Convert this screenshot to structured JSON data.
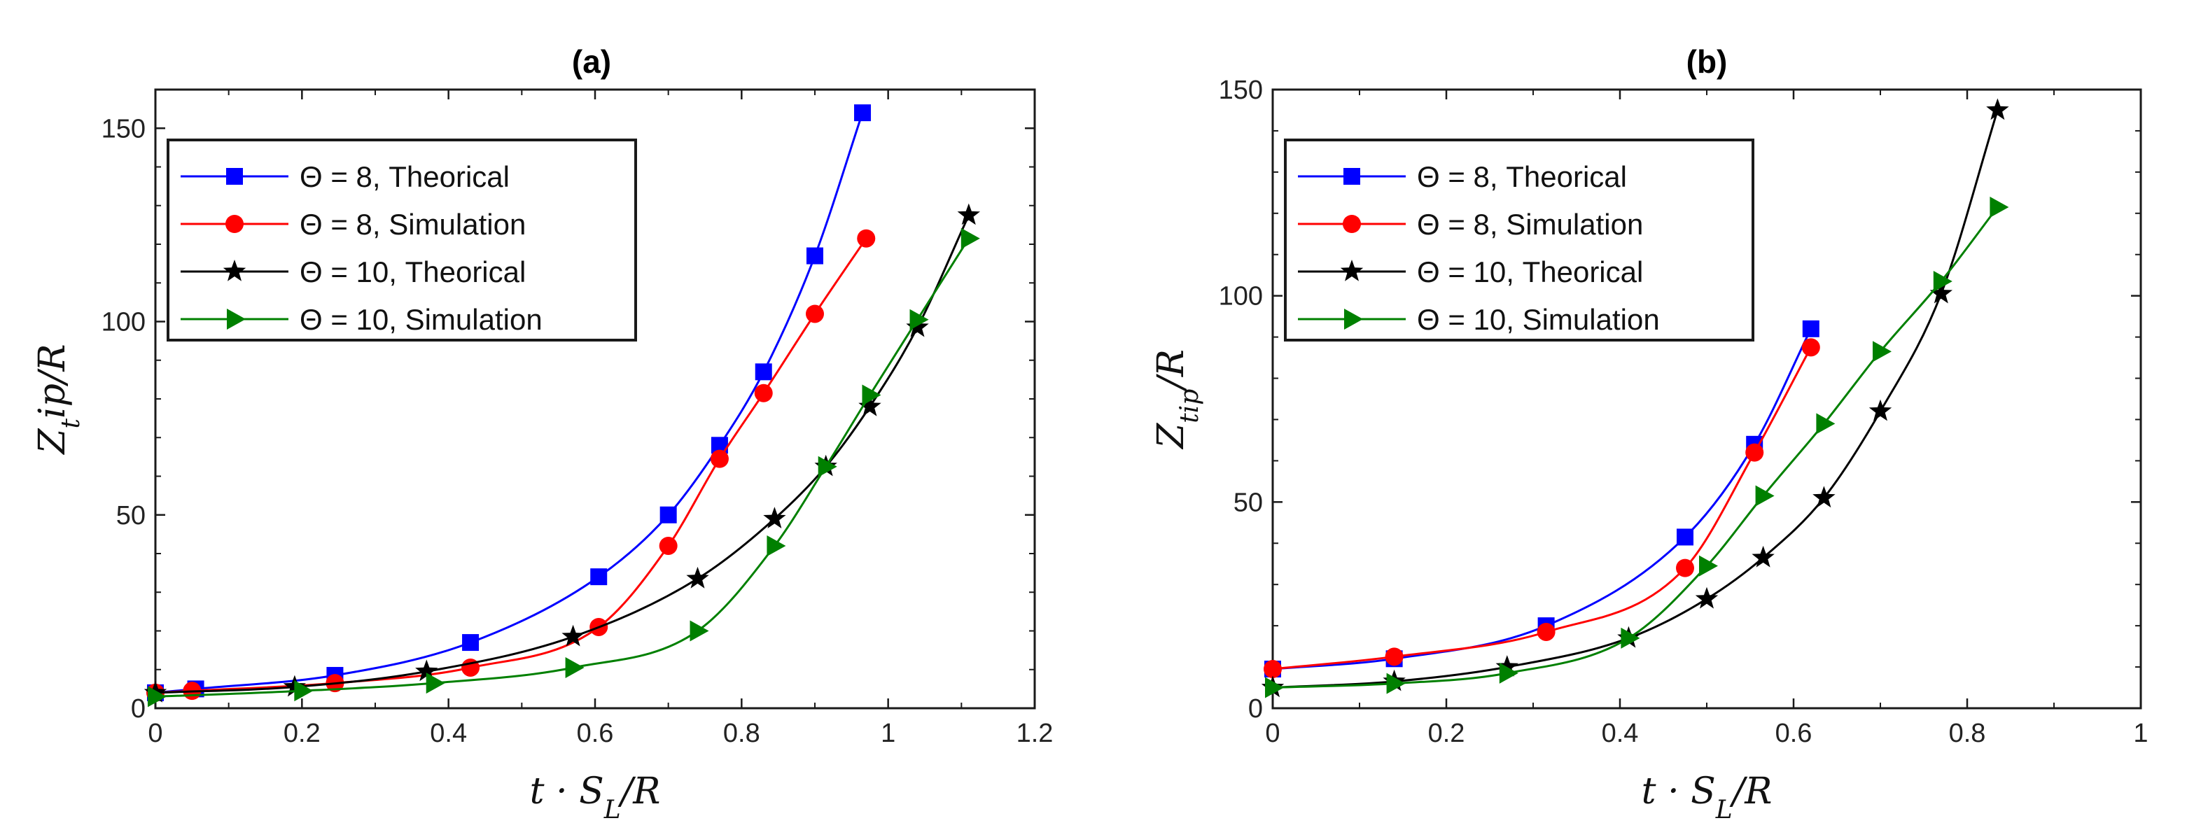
{
  "chart_data": [
    {
      "id": "a",
      "type": "line",
      "title": "(a)",
      "xlabel": "t · S_L/R",
      "ylabel": "Z_t ip/R",
      "xlim": [
        0,
        1.2
      ],
      "ylim": [
        0,
        160
      ],
      "xticks": [
        0,
        0.2,
        0.4,
        0.6,
        0.8,
        1,
        1.2
      ],
      "xtick_labels": [
        "0",
        "0.2",
        "0.4",
        "0.6",
        "0.8",
        "1",
        "1.2"
      ],
      "yticks": [
        0,
        50,
        100,
        150
      ],
      "ytick_labels": [
        "0",
        "50",
        "100",
        "150"
      ],
      "legend_position": "top-left",
      "series": [
        {
          "name": "Θ = 8, Theorical",
          "color": "#0000ff",
          "marker": "square",
          "x": [
            0,
            0.055,
            0.245,
            0.43,
            0.605,
            0.7,
            0.77,
            0.83,
            0.9,
            0.965
          ],
          "y": [
            4,
            5,
            8.5,
            17,
            34,
            50,
            68,
            87,
            117,
            154
          ]
        },
        {
          "name": "Θ = 8, Simulation",
          "color": "#ff0000",
          "marker": "circle",
          "x": [
            0,
            0.05,
            0.245,
            0.43,
            0.605,
            0.7,
            0.77,
            0.83,
            0.9,
            0.97
          ],
          "y": [
            4,
            4.5,
            6.5,
            10.5,
            21,
            42,
            64.5,
            81.5,
            102,
            121.5
          ]
        },
        {
          "name": "Θ = 10, Theorical",
          "color": "#000000",
          "marker": "star",
          "x": [
            0,
            0.19,
            0.37,
            0.57,
            0.74,
            0.845,
            0.915,
            0.975,
            1.04,
            1.11
          ],
          "y": [
            4,
            5.5,
            9.5,
            18.5,
            33.5,
            49,
            62.5,
            78,
            98.5,
            127.5
          ]
        },
        {
          "name": "Θ = 10, Simulation",
          "color": "#008000",
          "marker": "triangle-right",
          "x": [
            0,
            0.2,
            0.38,
            0.57,
            0.74,
            0.845,
            0.915,
            0.975,
            1.04,
            1.11
          ],
          "y": [
            3,
            4.5,
            6.5,
            10.5,
            20,
            42,
            62.5,
            81,
            100.5,
            121.5
          ]
        }
      ]
    },
    {
      "id": "b",
      "type": "line",
      "title": "(b)",
      "xlabel": "t · S_L/R",
      "ylabel": "Z_tip/R",
      "xlim": [
        0,
        1
      ],
      "ylim": [
        0,
        150
      ],
      "xticks": [
        0,
        0.2,
        0.4,
        0.6,
        0.8,
        1
      ],
      "xtick_labels": [
        "0",
        "0.2",
        "0.4",
        "0.6",
        "0.8",
        "1"
      ],
      "yticks": [
        0,
        50,
        100,
        150
      ],
      "ytick_labels": [
        "0",
        "50",
        "100",
        "150"
      ],
      "legend_position": "top-left",
      "series": [
        {
          "name": "Θ = 8, Theorical",
          "color": "#0000ff",
          "marker": "square",
          "x": [
            0,
            0.14,
            0.315,
            0.475,
            0.555,
            0.62
          ],
          "y": [
            9.5,
            12,
            20,
            41.5,
            64,
            92
          ]
        },
        {
          "name": "Θ = 8, Simulation",
          "color": "#ff0000",
          "marker": "circle",
          "x": [
            0,
            0.14,
            0.315,
            0.475,
            0.555,
            0.62
          ],
          "y": [
            9.5,
            12.5,
            18.5,
            34,
            62,
            87.5
          ]
        },
        {
          "name": "Θ = 10, Theorical",
          "color": "#000000",
          "marker": "star",
          "x": [
            0,
            0.14,
            0.27,
            0.41,
            0.5,
            0.565,
            0.635,
            0.7,
            0.77,
            0.835
          ],
          "y": [
            5,
            6.5,
            10,
            17,
            26.5,
            36.5,
            51,
            72,
            100.5,
            145
          ]
        },
        {
          "name": "Θ = 10, Simulation",
          "color": "#008000",
          "marker": "triangle-right",
          "x": [
            0,
            0.14,
            0.27,
            0.41,
            0.5,
            0.565,
            0.635,
            0.7,
            0.77,
            0.835
          ],
          "y": [
            5,
            6,
            8.5,
            17,
            34.5,
            51.5,
            69,
            86.5,
            103.5,
            121.5
          ]
        }
      ]
    }
  ]
}
